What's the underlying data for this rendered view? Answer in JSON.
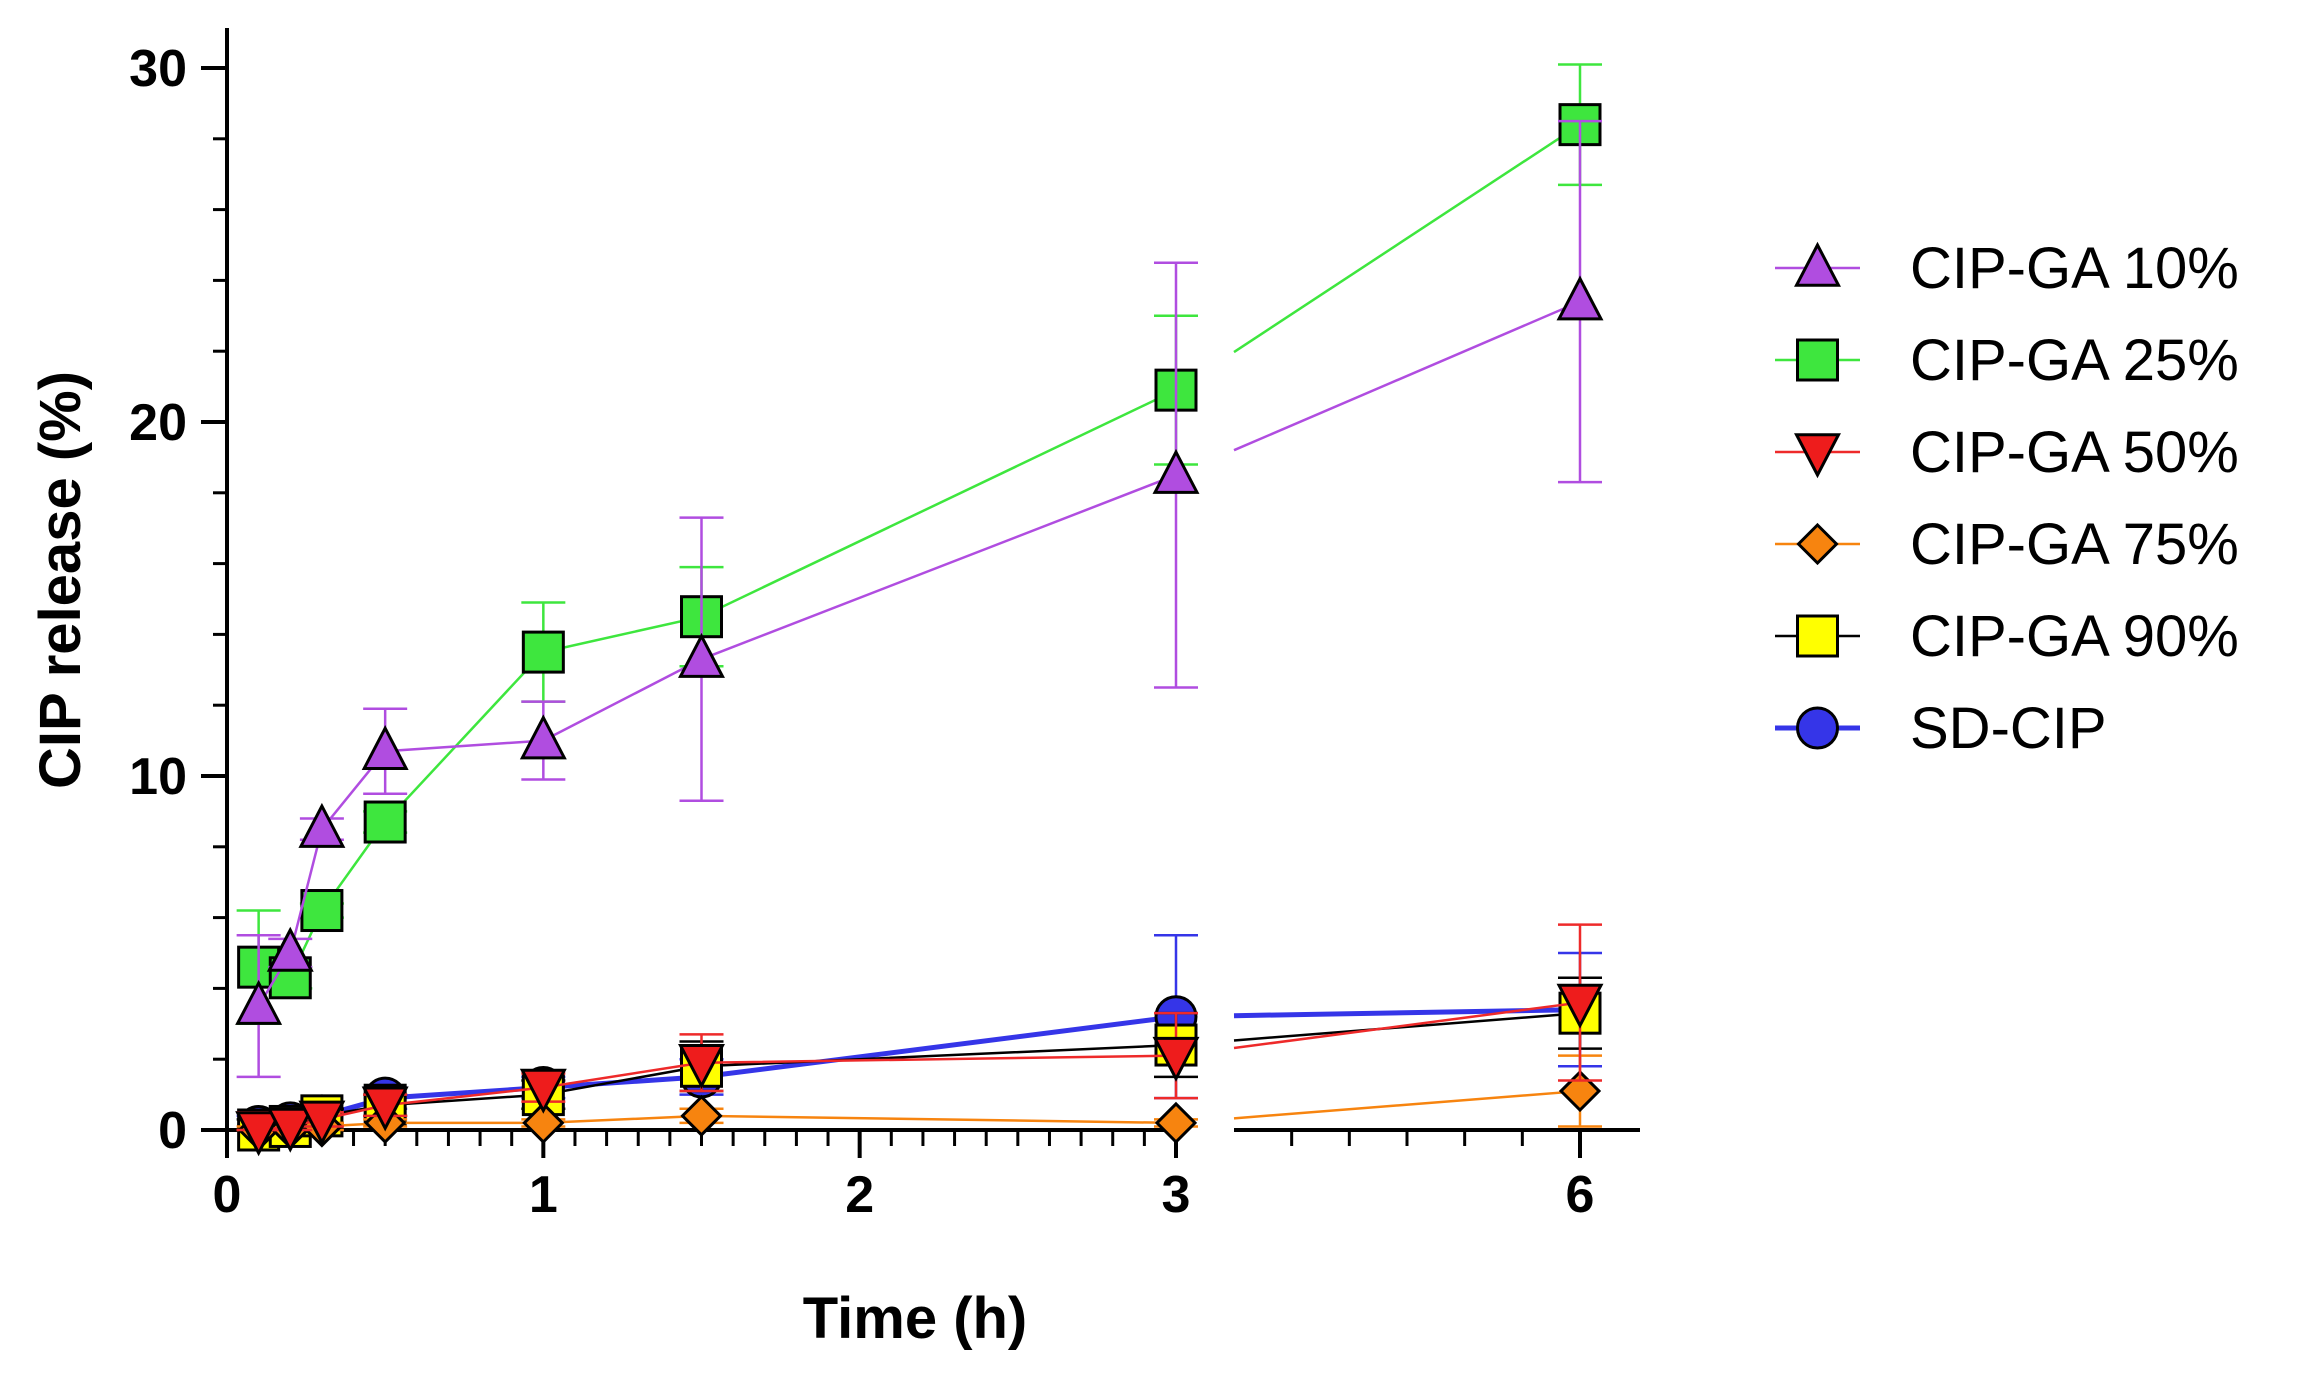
{
  "chart_data": {
    "type": "line",
    "title": "",
    "xlabel": "Time (h)",
    "ylabel": "CIP release (%)",
    "xlim_segment1": [
      0,
      3
    ],
    "xlim_segment2_ticks": [
      6
    ],
    "ylim": [
      0,
      30
    ],
    "x_tick_labels": [
      "0",
      "1",
      "2",
      "3",
      "6"
    ],
    "y_tick_labels": [
      "0",
      "10",
      "20",
      "30"
    ],
    "x": [
      0.1,
      0.2,
      0.3,
      0.5,
      1,
      1.5,
      3,
      6
    ],
    "legend_position": "right",
    "series": [
      {
        "name": "CIP-GA 10%",
        "marker": "triangle-up",
        "color": "#b04de0",
        "line_color": "#b04de0",
        "values": [
          3.5,
          5.0,
          8.5,
          10.7,
          11.0,
          13.3,
          18.5,
          23.4
        ],
        "errors": [
          2.0,
          0.4,
          0.3,
          1.2,
          1.1,
          4.0,
          6.0,
          5.1
        ]
      },
      {
        "name": "CIP-GA 25%",
        "marker": "square",
        "color": "#3ee63e",
        "line_color": "#3ee63e",
        "values": [
          4.6,
          4.3,
          6.2,
          8.7,
          13.5,
          14.5,
          20.9,
          28.4
        ],
        "errors": [
          1.6,
          0.3,
          0.2,
          0.3,
          1.4,
          1.4,
          2.1,
          1.7
        ]
      },
      {
        "name": "CIP-GA 50%",
        "marker": "triangle-down",
        "color": "#ee1c1c",
        "line_color": "#ee2a2a",
        "values": [
          0.0,
          0.1,
          0.3,
          0.7,
          1.2,
          1.9,
          2.1,
          3.6
        ],
        "errors": [
          0.5,
          0.2,
          0.2,
          0.3,
          0.4,
          0.8,
          1.2,
          2.2
        ]
      },
      {
        "name": "CIP-GA 75%",
        "marker": "diamond",
        "color": "#f7840f",
        "line_color": "#f7840f",
        "values": [
          0.0,
          0.05,
          0.1,
          0.2,
          0.2,
          0.4,
          0.2,
          1.1
        ],
        "errors": [
          0.1,
          0.1,
          0.1,
          0.1,
          0.1,
          0.2,
          0.1,
          1.0
        ]
      },
      {
        "name": "CIP-GA 90%",
        "marker": "square",
        "color": "#ffff00",
        "line_color": "#000000",
        "values": [
          0.0,
          0.1,
          0.4,
          0.7,
          1.0,
          1.8,
          2.4,
          3.3
        ],
        "errors": [
          0.3,
          0.2,
          0.2,
          0.3,
          0.4,
          0.7,
          0.9,
          1.0
        ]
      },
      {
        "name": "SD-CIP",
        "marker": "circle",
        "color": "#3535e8",
        "line_color": "#3535e8",
        "thick": true,
        "values": [
          0.1,
          0.2,
          0.4,
          0.9,
          1.2,
          1.5,
          3.2,
          3.4
        ],
        "errors": [
          0.3,
          0.2,
          0.2,
          0.3,
          0.3,
          0.5,
          2.3,
          1.6
        ]
      }
    ]
  }
}
